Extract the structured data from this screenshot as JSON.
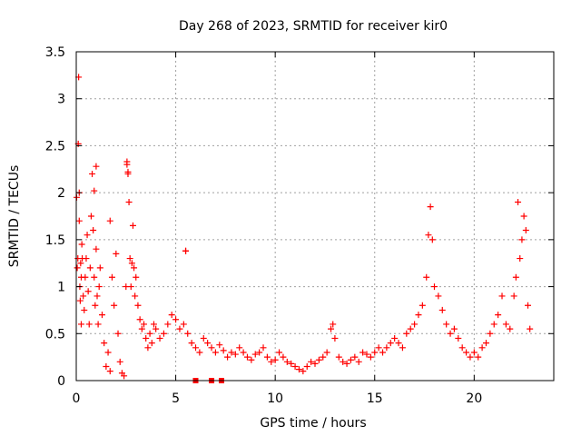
{
  "chart_data": {
    "type": "scatter",
    "title": "Day 268 of 2023, SRMTID for receiver kir0",
    "xlabel": "GPS time / hours",
    "ylabel": "SRMTID / TECUs",
    "xlim": [
      0,
      24
    ],
    "ylim": [
      0,
      3.5
    ],
    "x_ticks": [
      0,
      5,
      10,
      15,
      20
    ],
    "x_tick_labels": [
      "0",
      "5",
      "10",
      "15",
      "20"
    ],
    "y_ticks": [
      0,
      0.5,
      1,
      1.5,
      2,
      2.5,
      3,
      3.5
    ],
    "y_tick_labels": [
      "0",
      "0.5",
      "1",
      "1.5",
      "2",
      "2.5",
      "3",
      "3.5"
    ],
    "grid": true,
    "marker": "plus",
    "color": "#ff0000",
    "series": [
      {
        "name": "SRMTID",
        "x": [
          0.02,
          0.05,
          0.08,
          0.1,
          0.12,
          0.15,
          0.18,
          0.2,
          0.22,
          0.25,
          0.28,
          0.3,
          0.35,
          0.4,
          0.45,
          0.5,
          0.55,
          0.6,
          0.65,
          0.7,
          0.75,
          0.8,
          0.85,
          0.9,
          0.95,
          1.0,
          1.05,
          1.1,
          1.15,
          1.2,
          1.3,
          1.4,
          1.5,
          1.6,
          1.7,
          1.8,
          1.9,
          2.0,
          2.1,
          2.2,
          2.3,
          2.4,
          2.5,
          2.55,
          2.6,
          2.65,
          2.7,
          2.75,
          2.8,
          2.85,
          2.9,
          2.95,
          3.0,
          3.1,
          3.2,
          3.3,
          3.4,
          3.5,
          3.6,
          3.7,
          3.8,
          3.9,
          4.0,
          4.2,
          4.4,
          4.6,
          4.8,
          5.0,
          5.2,
          5.4,
          5.5,
          5.6,
          5.8,
          6.0,
          6.2,
          6.4,
          6.6,
          6.8,
          7.0,
          7.2,
          7.4,
          7.6,
          7.8,
          8.0,
          8.2,
          8.4,
          8.6,
          8.8,
          9.0,
          9.2,
          9.4,
          9.6,
          9.8,
          10.0,
          10.2,
          10.4,
          10.6,
          10.8,
          11.0,
          11.2,
          11.4,
          11.6,
          11.8,
          12.0,
          12.2,
          12.4,
          12.6,
          12.8,
          12.9,
          13.0,
          13.2,
          13.4,
          13.6,
          13.8,
          14.0,
          14.2,
          14.4,
          14.6,
          14.8,
          15.0,
          15.2,
          15.4,
          15.6,
          15.8,
          16.0,
          16.2,
          16.4,
          16.6,
          16.8,
          17.0,
          17.2,
          17.4,
          17.6,
          17.7,
          17.8,
          17.9,
          18.0,
          18.2,
          18.4,
          18.6,
          18.8,
          19.0,
          19.2,
          19.4,
          19.6,
          19.8,
          20.0,
          20.2,
          20.4,
          20.6,
          20.8,
          21.0,
          21.2,
          21.4,
          21.6,
          21.8,
          22.0,
          22.1,
          22.2,
          22.3,
          22.4,
          22.5,
          22.6,
          22.7,
          22.8,
          0.15,
          0.25,
          0.9,
          1.0,
          2.55,
          2.6,
          5.5,
          1.7
        ],
        "y": [
          1.95,
          1.2,
          1.3,
          2.52,
          3.23,
          1.7,
          1.0,
          0.85,
          1.25,
          1.1,
          1.45,
          1.3,
          0.9,
          0.75,
          1.1,
          1.3,
          1.55,
          0.95,
          0.6,
          1.2,
          1.75,
          2.2,
          1.6,
          1.1,
          0.8,
          1.4,
          0.9,
          0.6,
          1.0,
          1.2,
          0.7,
          0.4,
          0.15,
          0.3,
          0.1,
          1.1,
          0.8,
          1.35,
          0.5,
          0.2,
          0.08,
          0.05,
          1.0,
          2.3,
          2.2,
          1.9,
          1.3,
          1.0,
          1.25,
          1.65,
          1.2,
          0.9,
          1.1,
          0.8,
          0.65,
          0.55,
          0.6,
          0.45,
          0.35,
          0.5,
          0.4,
          0.6,
          0.55,
          0.45,
          0.5,
          0.6,
          0.7,
          0.65,
          0.55,
          0.6,
          1.38,
          0.5,
          0.4,
          0.35,
          0.3,
          0.45,
          0.4,
          0.35,
          0.3,
          0.38,
          0.32,
          0.25,
          0.3,
          0.28,
          0.35,
          0.3,
          0.25,
          0.22,
          0.28,
          0.3,
          0.35,
          0.25,
          0.2,
          0.22,
          0.3,
          0.25,
          0.2,
          0.18,
          0.15,
          0.12,
          0.1,
          0.15,
          0.2,
          0.18,
          0.22,
          0.25,
          0.3,
          0.55,
          0.6,
          0.45,
          0.25,
          0.2,
          0.18,
          0.22,
          0.25,
          0.2,
          0.3,
          0.28,
          0.25,
          0.3,
          0.35,
          0.3,
          0.35,
          0.4,
          0.45,
          0.4,
          0.35,
          0.5,
          0.55,
          0.6,
          0.7,
          0.8,
          1.1,
          1.55,
          1.85,
          1.5,
          1.0,
          0.9,
          0.75,
          0.6,
          0.5,
          0.55,
          0.45,
          0.35,
          0.3,
          0.25,
          0.3,
          0.25,
          0.35,
          0.4,
          0.5,
          0.6,
          0.7,
          0.9,
          0.6,
          0.55,
          0.9,
          1.1,
          1.9,
          1.3,
          1.5,
          1.75,
          1.6,
          0.8,
          0.55,
          2.0,
          0.6,
          2.02,
          2.28,
          2.33,
          2.22,
          1.38,
          1.7
        ],
        "flagged_zero_points_x": [
          6.0,
          6.8,
          7.3
        ]
      }
    ]
  }
}
